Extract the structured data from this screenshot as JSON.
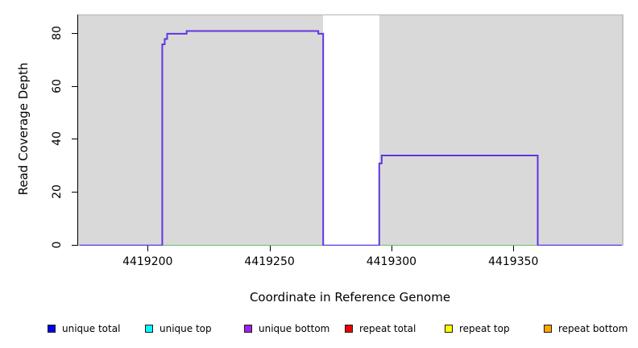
{
  "chart_data": {
    "type": "line",
    "subtype": "step-function-coverage",
    "title": "",
    "xlabel": "Coordinate in Reference Genome",
    "ylabel": "Read Coverage Depth",
    "xlim": [
      4419171.5,
      4419394.5
    ],
    "ylim": [
      0,
      87
    ],
    "x_ticks": [
      4419200,
      4419250,
      4419300,
      4419350
    ],
    "y_ticks": [
      0,
      20,
      40,
      60,
      80
    ],
    "grid": false,
    "plot_background": "#d9d9d9",
    "highlight_band": {
      "x0": 4419272,
      "x1": 4419295,
      "color": "#ffffff"
    },
    "series": [
      {
        "name": "coverage step curve",
        "color": "#6036e2",
        "style": "step",
        "segments": [
          [
            4419172,
            4419206,
            0
          ],
          [
            4419206,
            4419207,
            76
          ],
          [
            4419207,
            4419208,
            78
          ],
          [
            4419208,
            4419216,
            80
          ],
          [
            4419216,
            4419270,
            81
          ],
          [
            4419270,
            4419272,
            80
          ],
          [
            4419272,
            4419295,
            0
          ],
          [
            4419295,
            4419296,
            31
          ],
          [
            4419296,
            4419360,
            34
          ],
          [
            4419360,
            4419395,
            0
          ]
        ]
      },
      {
        "name": "zero baseline",
        "color": "#6abf6a",
        "style": "line",
        "x": [
          4419172,
          4419395
        ],
        "y": [
          0,
          0
        ]
      }
    ],
    "legend_position": "bottom",
    "legend": [
      {
        "label": "unique total",
        "color": "#0000ee"
      },
      {
        "label": "unique top",
        "color": "#00ffff"
      },
      {
        "label": "unique bottom",
        "color": "#a020f0"
      },
      {
        "label": "repeat total",
        "color": "#ee0000"
      },
      {
        "label": "repeat top",
        "color": "#ffff00"
      },
      {
        "label": "repeat bottom",
        "color": "#ffa500"
      }
    ]
  }
}
